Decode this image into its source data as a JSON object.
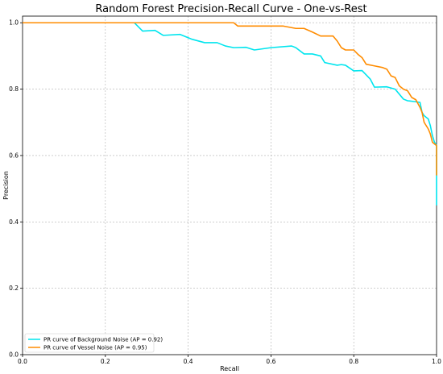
{
  "chart_data": {
    "type": "line",
    "title": "Random Forest Precision-Recall Curve - One-vs-Rest",
    "xlabel": "Recall",
    "ylabel": "Precision",
    "xlim": [
      0.0,
      1.0
    ],
    "ylim": [
      0.0,
      1.02
    ],
    "xticks": [
      "0.0",
      "0.2",
      "0.4",
      "0.6",
      "0.8",
      "1.0"
    ],
    "yticks": [
      "0.0",
      "0.2",
      "0.4",
      "0.6",
      "0.8",
      "1.0"
    ],
    "grid": true,
    "legend_position": "lower-left",
    "series": [
      {
        "name": "PR curve of Background Noise (AP = 0.92)",
        "color": "#00e5ee",
        "points": [
          [
            0.0,
            1.0
          ],
          [
            0.27,
            1.0
          ],
          [
            0.29,
            0.975
          ],
          [
            0.32,
            0.977
          ],
          [
            0.34,
            0.962
          ],
          [
            0.38,
            0.965
          ],
          [
            0.41,
            0.95
          ],
          [
            0.44,
            0.94
          ],
          [
            0.47,
            0.94
          ],
          [
            0.49,
            0.93
          ],
          [
            0.51,
            0.925
          ],
          [
            0.54,
            0.926
          ],
          [
            0.56,
            0.918
          ],
          [
            0.6,
            0.925
          ],
          [
            0.65,
            0.93
          ],
          [
            0.66,
            0.925
          ],
          [
            0.68,
            0.906
          ],
          [
            0.7,
            0.906
          ],
          [
            0.72,
            0.9
          ],
          [
            0.73,
            0.88
          ],
          [
            0.76,
            0.872
          ],
          [
            0.77,
            0.874
          ],
          [
            0.78,
            0.872
          ],
          [
            0.8,
            0.855
          ],
          [
            0.82,
            0.856
          ],
          [
            0.84,
            0.83
          ],
          [
            0.85,
            0.806
          ],
          [
            0.88,
            0.807
          ],
          [
            0.9,
            0.8
          ],
          [
            0.92,
            0.77
          ],
          [
            0.93,
            0.765
          ],
          [
            0.95,
            0.762
          ],
          [
            0.96,
            0.76
          ],
          [
            0.965,
            0.73
          ],
          [
            0.97,
            0.72
          ],
          [
            0.98,
            0.71
          ],
          [
            0.985,
            0.69
          ],
          [
            0.99,
            0.66
          ],
          [
            0.995,
            0.64
          ],
          [
            1.0,
            0.63
          ],
          [
            1.0,
            0.45
          ]
        ]
      },
      {
        "name": "PR curve of Vessel Noise (AP = 0.95)",
        "color": "#ff8c00",
        "points": [
          [
            0.0,
            1.0
          ],
          [
            0.51,
            1.0
          ],
          [
            0.52,
            0.99
          ],
          [
            0.63,
            0.99
          ],
          [
            0.66,
            0.983
          ],
          [
            0.68,
            0.983
          ],
          [
            0.7,
            0.972
          ],
          [
            0.72,
            0.96
          ],
          [
            0.75,
            0.96
          ],
          [
            0.76,
            0.945
          ],
          [
            0.77,
            0.925
          ],
          [
            0.78,
            0.918
          ],
          [
            0.8,
            0.918
          ],
          [
            0.81,
            0.905
          ],
          [
            0.82,
            0.895
          ],
          [
            0.83,
            0.875
          ],
          [
            0.85,
            0.87
          ],
          [
            0.87,
            0.865
          ],
          [
            0.88,
            0.86
          ],
          [
            0.89,
            0.84
          ],
          [
            0.9,
            0.835
          ],
          [
            0.91,
            0.81
          ],
          [
            0.92,
            0.8
          ],
          [
            0.93,
            0.795
          ],
          [
            0.94,
            0.775
          ],
          [
            0.95,
            0.768
          ],
          [
            0.96,
            0.745
          ],
          [
            0.965,
            0.73
          ],
          [
            0.97,
            0.7
          ],
          [
            0.98,
            0.68
          ],
          [
            0.985,
            0.665
          ],
          [
            0.99,
            0.64
          ],
          [
            1.0,
            0.63
          ],
          [
            1.0,
            0.54
          ]
        ]
      }
    ]
  }
}
